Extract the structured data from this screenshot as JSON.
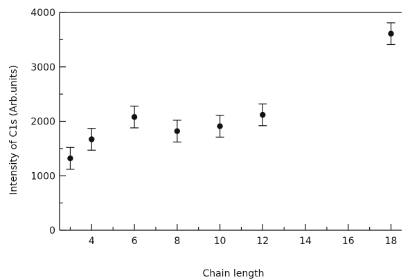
{
  "chart_data": {
    "type": "scatter",
    "title": "",
    "xlabel": "Chain length",
    "ylabel": "Intensity of C1s (Arb.units)",
    "xlim": [
      2.5,
      18.5
    ],
    "ylim": [
      0,
      4000
    ],
    "grid": false,
    "x_ticks": [
      4,
      6,
      8,
      10,
      12,
      14,
      16,
      18
    ],
    "x_minor_ticks": [
      3,
      5,
      7,
      9,
      11,
      13,
      15,
      17
    ],
    "y_ticks": [
      0,
      1000,
      2000,
      3000,
      4000
    ],
    "y_minor_ticks": [
      500,
      1500,
      2500,
      3500
    ],
    "series": [
      {
        "points": [
          {
            "x": 3,
            "y": 1320,
            "err": 200
          },
          {
            "x": 4,
            "y": 1670,
            "err": 200
          },
          {
            "x": 6,
            "y": 2080,
            "err": 200
          },
          {
            "x": 8,
            "y": 1820,
            "err": 200
          },
          {
            "x": 10,
            "y": 1910,
            "err": 200
          },
          {
            "x": 12,
            "y": 2120,
            "err": 200
          },
          {
            "x": 18,
            "y": 3610,
            "err": 200
          }
        ]
      }
    ]
  }
}
